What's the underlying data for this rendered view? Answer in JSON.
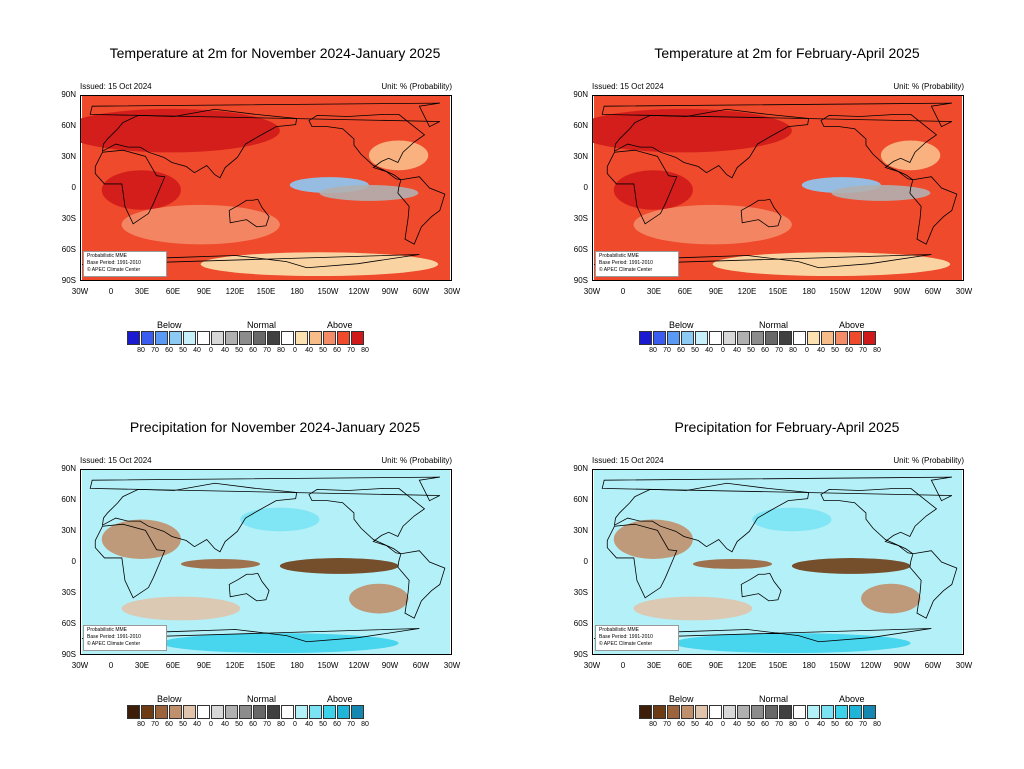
{
  "issued": "Issued: 15 Oct 2024",
  "unit": "Unit: % (Probability)",
  "info_lines": [
    "Probabilistic MME",
    "Base Period: 1991-2010",
    "© APEC Climate Center"
  ],
  "lat_labels": [
    "90N",
    "60N",
    "30N",
    "0",
    "30S",
    "60S",
    "90S"
  ],
  "lon_labels": [
    "30W",
    "0",
    "30E",
    "60E",
    "90E",
    "120E",
    "150E",
    "180",
    "150W",
    "120W",
    "90W",
    "60W",
    "30W"
  ],
  "legend": {
    "below": "Below",
    "normal": "Normal",
    "above": "Above",
    "ticks": [
      "80",
      "70",
      "60",
      "50",
      "40",
      "0",
      "40",
      "50",
      "60",
      "70",
      "80",
      "0",
      "40",
      "50",
      "60",
      "70",
      "80"
    ]
  },
  "panels": [
    {
      "title": "Temperature at 2m for November 2024-January 2025",
      "variable": "temperature"
    },
    {
      "title": "Temperature at 2m for February-April 2025",
      "variable": "temperature"
    },
    {
      "title": "Precipitation for November 2024-January 2025",
      "variable": "precipitation"
    },
    {
      "title": "Precipitation for February-April 2025",
      "variable": "precipitation"
    }
  ],
  "palettes": {
    "temperature": {
      "below": [
        "#1a1ad0",
        "#3a5cf0",
        "#5a9af5",
        "#8ccaf5",
        "#c8f0fa"
      ],
      "normal": [
        "#ffffff",
        "#d8d8d8",
        "#b0b0b0",
        "#8c8c8c",
        "#686868",
        "#404040"
      ],
      "above": [
        "#ffffff",
        "#fbe2b0",
        "#f8bc88",
        "#f48c68",
        "#ef4a2c",
        "#d01a1a"
      ]
    },
    "precipitation": {
      "below": [
        "#3c1e0a",
        "#6e3c14",
        "#9c643c",
        "#c0906c",
        "#e0c4ac"
      ],
      "normal": [
        "#ffffff",
        "#d8d8d8",
        "#b0b0b0",
        "#8c8c8c",
        "#686868",
        "#404040"
      ],
      "above": [
        "#ffffff",
        "#b4f0f8",
        "#7ae4f4",
        "#3cd2ec",
        "#20b4d8",
        "#1488b0"
      ]
    }
  }
}
